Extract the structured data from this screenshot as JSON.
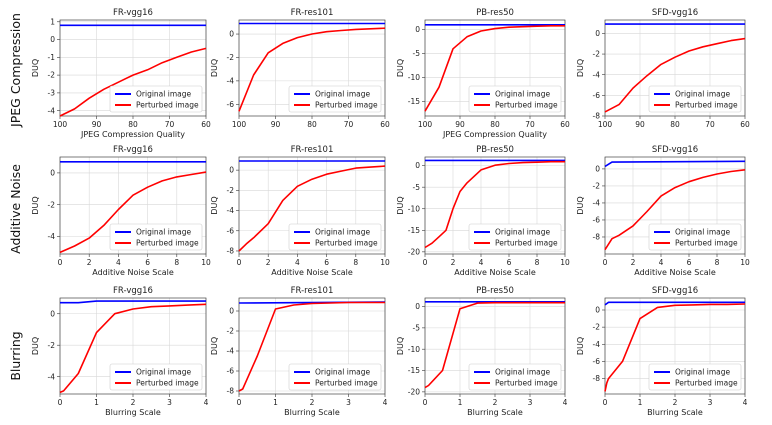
{
  "chart_data": [
    {
      "type": "line",
      "title": "FR-vgg16",
      "xlabel": "JPEG Compression Quality",
      "ylabel": "DUQ",
      "row_label": "JPEG Compression",
      "xlim": [
        100,
        60
      ],
      "ylim": [
        -4.3,
        1.1
      ],
      "xticks": [
        100,
        90,
        80,
        70,
        60
      ],
      "yticks": [
        1,
        0,
        -1,
        -2,
        -3,
        -4
      ],
      "legend_loc": "lower-right",
      "series": [
        {
          "name": "Original image",
          "color": "#0000ff",
          "x": [
            100,
            60
          ],
          "y": [
            0.8,
            0.8
          ]
        },
        {
          "name": "Perturbed image",
          "color": "#ff0000",
          "x": [
            100,
            96,
            92,
            88,
            84,
            80,
            76,
            72,
            68,
            64,
            60
          ],
          "y": [
            -4.3,
            -3.9,
            -3.3,
            -2.8,
            -2.4,
            -2.0,
            -1.7,
            -1.3,
            -1.0,
            -0.7,
            -0.5
          ]
        }
      ]
    },
    {
      "type": "line",
      "title": "FR-res101",
      "xlabel": "",
      "ylabel": "DUQ",
      "xlim": [
        100,
        60
      ],
      "ylim": [
        -7,
        1.2
      ],
      "xticks": [
        100,
        90,
        80,
        70,
        60
      ],
      "yticks": [
        0,
        -2,
        -4,
        -6
      ],
      "legend_loc": "lower-right",
      "series": [
        {
          "name": "Original image",
          "color": "#0000ff",
          "x": [
            100,
            60
          ],
          "y": [
            0.9,
            0.9
          ]
        },
        {
          "name": "Perturbed image",
          "color": "#ff0000",
          "x": [
            100,
            96,
            92,
            88,
            84,
            80,
            76,
            72,
            68,
            64,
            60
          ],
          "y": [
            -6.6,
            -3.5,
            -1.6,
            -0.8,
            -0.3,
            0.0,
            0.2,
            0.3,
            0.4,
            0.45,
            0.5
          ]
        }
      ]
    },
    {
      "type": "line",
      "title": "PB-res50",
      "xlabel": "JPEG Compression Quality",
      "ylabel": "DUQ",
      "xlim": [
        100,
        60
      ],
      "ylim": [
        -18,
        2
      ],
      "xticks": [
        100,
        90,
        80,
        70,
        60
      ],
      "yticks": [
        0,
        -5,
        -10,
        -15
      ],
      "legend_loc": "lower-right",
      "series": [
        {
          "name": "Original image",
          "color": "#0000ff",
          "x": [
            100,
            60
          ],
          "y": [
            1,
            1
          ]
        },
        {
          "name": "Perturbed image",
          "color": "#ff0000",
          "x": [
            100,
            96,
            92,
            88,
            84,
            80,
            76,
            72,
            68,
            64,
            60
          ],
          "y": [
            -17,
            -12,
            -4,
            -1.5,
            -0.3,
            0.2,
            0.5,
            0.6,
            0.7,
            0.8,
            0.8
          ]
        }
      ]
    },
    {
      "type": "line",
      "title": "SFD-vgg16",
      "xlabel": "",
      "ylabel": "DUQ",
      "xlim": [
        100,
        60
      ],
      "ylim": [
        -8,
        1.3
      ],
      "xticks": [
        100,
        90,
        80,
        70,
        60
      ],
      "yticks": [
        0,
        -2,
        -4,
        -6,
        -8
      ],
      "legend_loc": "lower-right",
      "series": [
        {
          "name": "Original image",
          "color": "#0000ff",
          "x": [
            100,
            60
          ],
          "y": [
            0.9,
            0.9
          ]
        },
        {
          "name": "Perturbed image",
          "color": "#ff0000",
          "x": [
            100,
            96,
            92,
            88,
            84,
            80,
            76,
            72,
            68,
            64,
            60
          ],
          "y": [
            -7.6,
            -6.9,
            -5.3,
            -4.1,
            -3.0,
            -2.3,
            -1.7,
            -1.3,
            -1.0,
            -0.7,
            -0.5
          ]
        }
      ]
    },
    {
      "type": "line",
      "title": "FR-vgg16",
      "xlabel": "Additive Noise Scale",
      "ylabel": "DUQ",
      "row_label": "Additive Noise",
      "xlim": [
        0,
        10
      ],
      "ylim": [
        -5.1,
        1.0
      ],
      "xticks": [
        0,
        2,
        4,
        6,
        8,
        10
      ],
      "yticks": [
        0,
        -2,
        -4
      ],
      "legend_loc": "lower-right",
      "series": [
        {
          "name": "Original image",
          "color": "#0000ff",
          "x": [
            0,
            10
          ],
          "y": [
            0.7,
            0.7
          ]
        },
        {
          "name": "Perturbed image",
          "color": "#ff0000",
          "x": [
            0,
            1,
            2,
            3,
            4,
            5,
            6,
            7,
            8,
            9,
            10
          ],
          "y": [
            -5.0,
            -4.6,
            -4.1,
            -3.3,
            -2.3,
            -1.4,
            -0.9,
            -0.5,
            -0.25,
            -0.1,
            0.05
          ]
        }
      ]
    },
    {
      "type": "line",
      "title": "FR-res101",
      "xlabel": "Additive Noise Scale",
      "ylabel": "DUQ",
      "xlim": [
        0,
        10
      ],
      "ylim": [
        -8.3,
        1.3
      ],
      "xticks": [
        0,
        2,
        4,
        6,
        8,
        10
      ],
      "yticks": [
        0,
        -2,
        -4,
        -6,
        -8
      ],
      "legend_loc": "lower-right",
      "series": [
        {
          "name": "Original image",
          "color": "#0000ff",
          "x": [
            0,
            10
          ],
          "y": [
            0.9,
            0.9
          ]
        },
        {
          "name": "Perturbed image",
          "color": "#ff0000",
          "x": [
            0,
            0.5,
            1,
            2,
            3,
            4,
            5,
            6,
            7,
            8,
            9,
            10
          ],
          "y": [
            -8,
            -7.3,
            -6.7,
            -5.3,
            -3.0,
            -1.6,
            -0.9,
            -0.4,
            -0.1,
            0.2,
            0.3,
            0.4
          ]
        }
      ]
    },
    {
      "type": "line",
      "title": "PB-res50",
      "xlabel": "Additive Noise Scale",
      "ylabel": "DUQ",
      "xlim": [
        0,
        10
      ],
      "ylim": [
        -20.5,
        2
      ],
      "xticks": [
        0,
        2,
        4,
        6,
        8,
        10
      ],
      "yticks": [
        0,
        -5,
        -10,
        -15,
        -20
      ],
      "legend_loc": "lower-right",
      "series": [
        {
          "name": "Original image",
          "color": "#0000ff",
          "x": [
            0,
            10
          ],
          "y": [
            1.2,
            1.2
          ]
        },
        {
          "name": "Perturbed image",
          "color": "#ff0000",
          "x": [
            0,
            0.5,
            1,
            1.5,
            2,
            2.5,
            3,
            4,
            5,
            6,
            7,
            8,
            9,
            10
          ],
          "y": [
            -19,
            -18,
            -16.5,
            -15,
            -10,
            -6,
            -4,
            -1,
            0.1,
            0.5,
            0.7,
            0.8,
            0.9,
            0.9
          ]
        }
      ]
    },
    {
      "type": "line",
      "title": "SFD-vgg16",
      "xlabel": "Additive Noise Scale",
      "ylabel": "DUQ",
      "xlim": [
        0,
        10
      ],
      "ylim": [
        -10,
        1.4
      ],
      "xticks": [
        0,
        2,
        4,
        6,
        8,
        10
      ],
      "yticks": [
        0,
        -2,
        -4,
        -6,
        -8
      ],
      "legend_loc": "lower-right",
      "series": [
        {
          "name": "Original image",
          "color": "#0000ff",
          "x": [
            0,
            0.5,
            10
          ],
          "y": [
            0.3,
            0.8,
            0.9
          ]
        },
        {
          "name": "Perturbed image",
          "color": "#ff0000",
          "x": [
            0,
            0.5,
            1,
            2,
            3,
            4,
            5,
            6,
            7,
            8,
            9,
            10
          ],
          "y": [
            -9.5,
            -8.2,
            -7.8,
            -6.7,
            -5.0,
            -3.2,
            -2.2,
            -1.5,
            -1.0,
            -0.6,
            -0.3,
            -0.1
          ]
        }
      ]
    },
    {
      "type": "line",
      "title": "FR-vgg16",
      "xlabel": "Blurring Scale",
      "ylabel": "DUQ",
      "row_label": "Blurring",
      "xlim": [
        0,
        4
      ],
      "ylim": [
        -5.1,
        1.0
      ],
      "xticks": [
        0,
        1,
        2,
        3,
        4
      ],
      "yticks": [
        0,
        -2,
        -4
      ],
      "legend_loc": "lower-right",
      "series": [
        {
          "name": "Original image",
          "color": "#0000ff",
          "x": [
            0,
            0.5,
            1,
            4
          ],
          "y": [
            0.7,
            0.7,
            0.8,
            0.8
          ]
        },
        {
          "name": "Perturbed image",
          "color": "#ff0000",
          "x": [
            0,
            0.1,
            0.5,
            1,
            1.5,
            2,
            2.5,
            3,
            3.5,
            4
          ],
          "y": [
            -5.0,
            -4.9,
            -3.8,
            -1.2,
            0.0,
            0.3,
            0.45,
            0.5,
            0.55,
            0.6
          ]
        }
      ]
    },
    {
      "type": "line",
      "title": "FR-res101",
      "xlabel": "Blurring Scale",
      "ylabel": "DUQ",
      "xlim": [
        0,
        4
      ],
      "ylim": [
        -8.3,
        1.3
      ],
      "xticks": [
        0,
        1,
        2,
        3,
        4
      ],
      "yticks": [
        0,
        -2,
        -4,
        -6,
        -8
      ],
      "legend_loc": "lower-right",
      "series": [
        {
          "name": "Original image",
          "color": "#0000ff",
          "x": [
            0,
            4
          ],
          "y": [
            0.8,
            0.9
          ]
        },
        {
          "name": "Perturbed image",
          "color": "#ff0000",
          "x": [
            0,
            0.1,
            0.5,
            1,
            1.5,
            2,
            2.5,
            3,
            3.5,
            4
          ],
          "y": [
            -8.0,
            -7.8,
            -4.5,
            0.2,
            0.6,
            0.75,
            0.8,
            0.85,
            0.85,
            0.85
          ]
        }
      ]
    },
    {
      "type": "line",
      "title": "PB-res50",
      "xlabel": "Blurring Scale",
      "ylabel": "DUQ",
      "xlim": [
        0,
        4
      ],
      "ylim": [
        -20.5,
        2
      ],
      "xticks": [
        0,
        1,
        2,
        3,
        4
      ],
      "yticks": [
        0,
        -5,
        -10,
        -15,
        -20
      ],
      "legend_loc": "lower-right",
      "series": [
        {
          "name": "Original image",
          "color": "#0000ff",
          "x": [
            0,
            4
          ],
          "y": [
            1.1,
            1.1
          ]
        },
        {
          "name": "Perturbed image",
          "color": "#ff0000",
          "x": [
            0,
            0.1,
            0.5,
            1,
            1.5,
            2,
            2.5,
            3,
            4
          ],
          "y": [
            -19,
            -18.5,
            -15,
            -0.5,
            0.8,
            0.9,
            0.9,
            0.9,
            0.9
          ]
        }
      ]
    },
    {
      "type": "line",
      "title": "SFD-vgg16",
      "xlabel": "Blurring Scale",
      "ylabel": "DUQ",
      "xlim": [
        0,
        4
      ],
      "ylim": [
        -9.8,
        1.4
      ],
      "xticks": [
        0,
        1,
        2,
        3,
        4
      ],
      "yticks": [
        0,
        -2,
        -4,
        -6,
        -8
      ],
      "legend_loc": "lower-right",
      "series": [
        {
          "name": "Original image",
          "color": "#0000ff",
          "x": [
            0,
            0.1,
            4
          ],
          "y": [
            0.6,
            0.9,
            0.9
          ]
        },
        {
          "name": "Perturbed image",
          "color": "#ff0000",
          "x": [
            0,
            0.05,
            0.1,
            0.5,
            1,
            1.5,
            2,
            2.5,
            3,
            3.5,
            4
          ],
          "y": [
            -9.5,
            -8.5,
            -8.0,
            -6.0,
            -1.0,
            0.3,
            0.55,
            0.6,
            0.65,
            0.65,
            0.7
          ]
        }
      ]
    }
  ]
}
